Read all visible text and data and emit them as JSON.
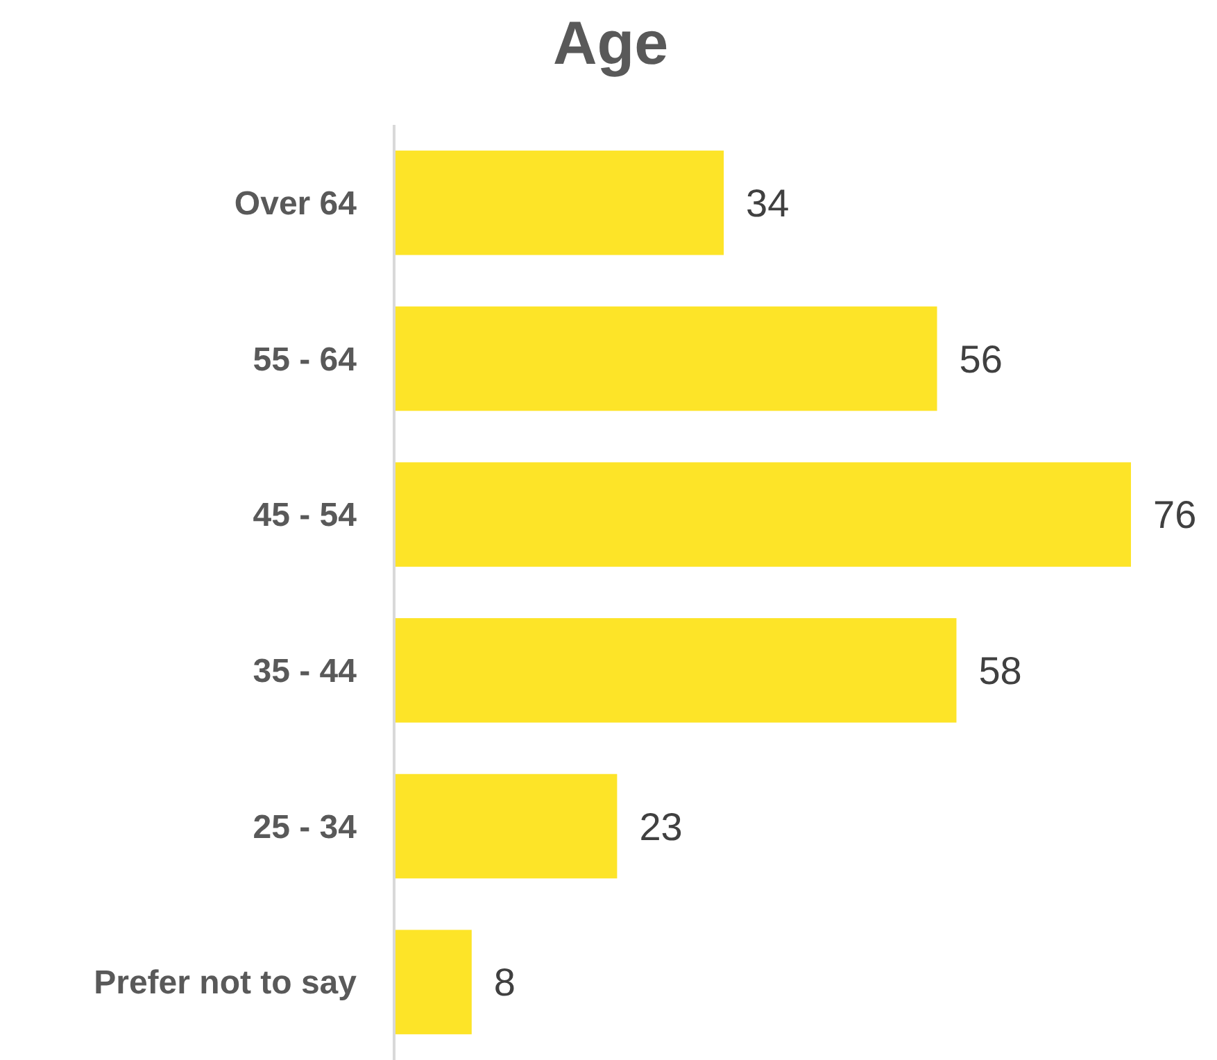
{
  "chart_data": {
    "type": "bar",
    "orientation": "horizontal",
    "title": "Age",
    "categories": [
      "Over 64",
      "55 - 64",
      "45 - 54",
      "35 - 44",
      "25 - 34",
      "Prefer not to say"
    ],
    "values": [
      34,
      56,
      76,
      58,
      23,
      8
    ],
    "color": "#fde428",
    "data_labels": true
  }
}
